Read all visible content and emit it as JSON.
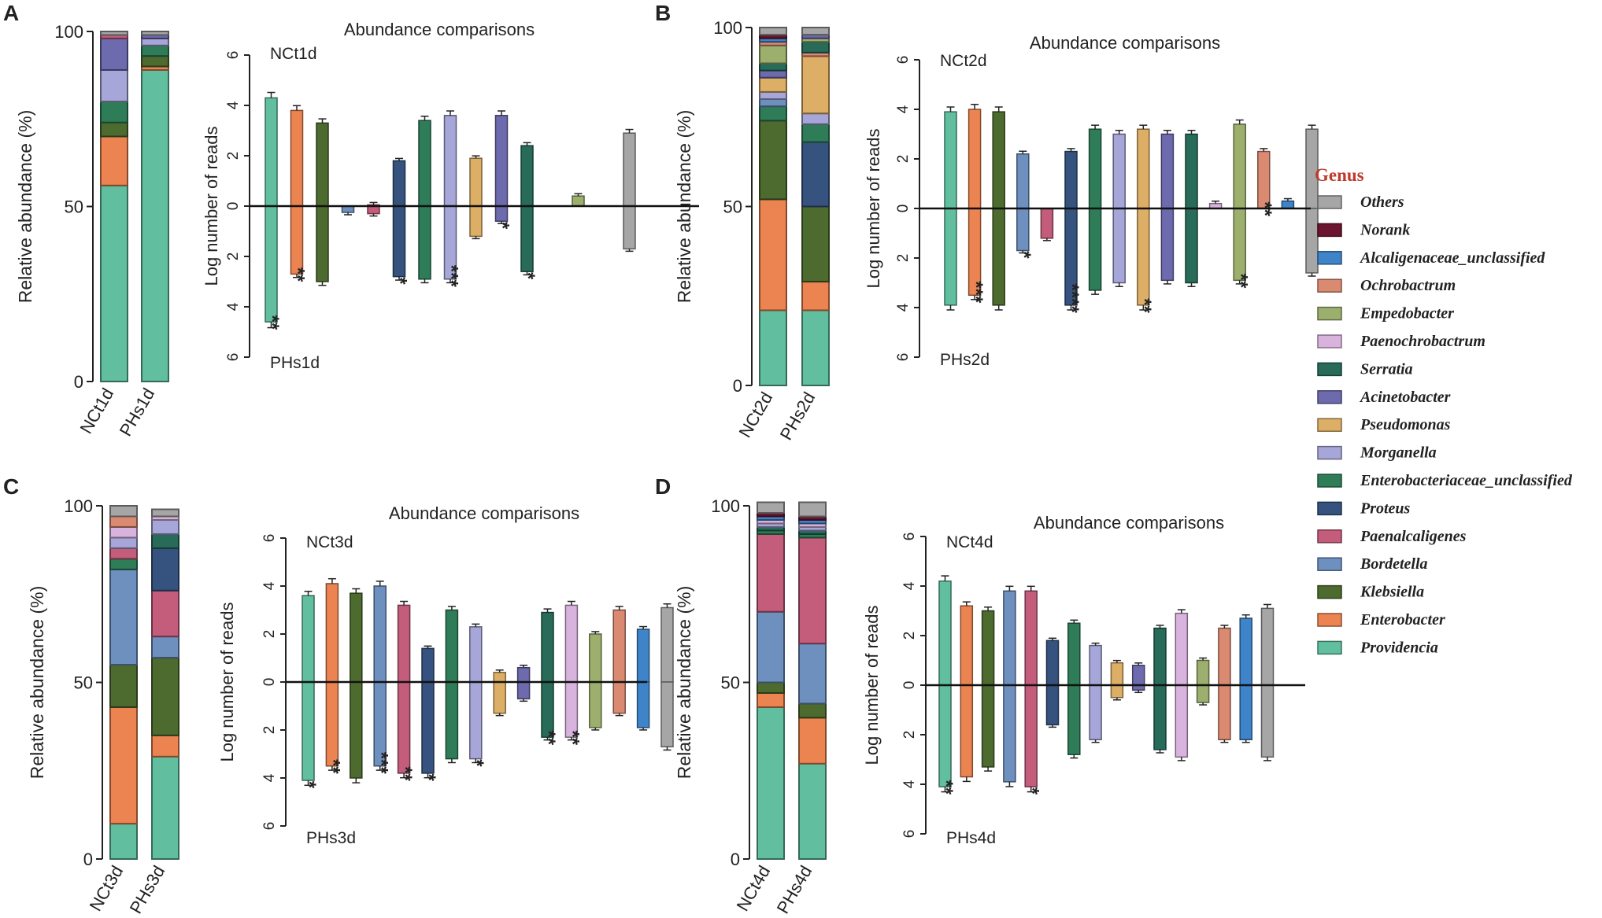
{
  "colors": {
    "Others": "#a6a6a6",
    "Norank": "#6b1530",
    "Alcaligenaceae_unclassified": "#3f84c8",
    "Ochrobactrum": "#db8a72",
    "Empedobacter": "#9caf6d",
    "Paenochrobactrum": "#d8b3dd",
    "Serratia": "#276b58",
    "Acinetobacter": "#6e6aae",
    "Pseudomonas": "#dcae66",
    "Morganella": "#a6a6d8",
    "Enterobacteriaceae_unclassified": "#2f7d58",
    "Proteus": "#36537f",
    "Paenalcaligenes": "#c45c7c",
    "Bordetella": "#6d90bf",
    "Klebsiella": "#4d6a2f",
    "Enterobacter": "#ec8452",
    "Providencia": "#61bfa0"
  },
  "legend": {
    "title": "Genus",
    "items": [
      "Others",
      "Norank",
      "Alcaligenaceae_unclassified",
      "Ochrobactrum",
      "Empedobacter",
      "Paenochrobactrum",
      "Serratia",
      "Acinetobacter",
      "Pseudomonas",
      "Morganella",
      "Enterobacteriaceae_unclassified",
      "Proteus",
      "Paenalcaligenes",
      "Bordetella",
      "Klebsiella",
      "Enterobacter",
      "Providencia"
    ]
  },
  "chart_data": [
    {
      "panel": "A",
      "type": "bar",
      "stacked": {
        "ylabel": "Relative abundance (%)",
        "yticks": [
          "0",
          "50",
          "100"
        ],
        "ylim": [
          0,
          100
        ],
        "categories": [
          "NCt1d",
          "PHs1d"
        ],
        "stacks": [
          [
            [
              "Providencia",
              56
            ],
            [
              "Enterobacter",
              14
            ],
            [
              "Klebsiella",
              4
            ],
            [
              "Enterobacteriaceae_unclassified",
              6
            ],
            [
              "Morganella",
              9
            ],
            [
              "Acinetobacter",
              9
            ],
            [
              "Paenalcaligenes",
              1
            ],
            [
              "Others",
              1
            ]
          ],
          [
            [
              "Providencia",
              89
            ],
            [
              "Enterobacter",
              1
            ],
            [
              "Klebsiella",
              3
            ],
            [
              "Enterobacteriaceae_unclassified",
              3
            ],
            [
              "Morganella",
              2
            ],
            [
              "Acinetobacter",
              1
            ],
            [
              "Others",
              1
            ]
          ]
        ]
      },
      "comparison": {
        "title": "Abundance comparisons",
        "ylabel": "Log number of reads",
        "top_label": "NCt1d",
        "bottom_label": "PHs1d",
        "yticks": [
          "6",
          "4",
          "2",
          "0",
          "2",
          "4",
          "6"
        ],
        "ylim": [
          -6,
          6
        ],
        "bars": [
          {
            "genus": "Providencia",
            "up": 4.3,
            "down": 4.6,
            "sig": "**"
          },
          {
            "genus": "Enterobacter",
            "up": 3.8,
            "down": 2.7,
            "sig": "**"
          },
          {
            "genus": "Klebsiella",
            "up": 3.3,
            "down": 3.0,
            "sig": ""
          },
          {
            "genus": "Bordetella",
            "up": 0,
            "down": 0.25,
            "sig": ""
          },
          {
            "genus": "Paenalcaligenes",
            "up": 0.05,
            "down": 0.3,
            "sig": ""
          },
          {
            "genus": "Proteus",
            "up": 1.8,
            "down": 2.8,
            "sig": "*"
          },
          {
            "genus": "Enterobacteriaceae_unclassified",
            "up": 3.4,
            "down": 2.9,
            "sig": ""
          },
          {
            "genus": "Morganella",
            "up": 3.6,
            "down": 2.9,
            "sig": "***"
          },
          {
            "genus": "Pseudomonas",
            "up": 1.9,
            "down": 1.2,
            "sig": ""
          },
          {
            "genus": "Acinetobacter",
            "up": 3.6,
            "down": 0.6,
            "sig": "*"
          },
          {
            "genus": "Serratia",
            "up": 2.4,
            "down": 2.6,
            "sig": "*"
          },
          {
            "genus": "Paenochrobactrum",
            "up": 0,
            "down": 0,
            "sig": ""
          },
          {
            "genus": "Empedobacter",
            "up": 0.4,
            "down": 0,
            "sig": ""
          },
          {
            "genus": "Ochrobactrum",
            "up": 0,
            "down": 0,
            "sig": ""
          },
          {
            "genus": "Others",
            "up": 2.9,
            "down": 1.7,
            "sig": ""
          }
        ]
      }
    },
    {
      "panel": "B",
      "type": "bar",
      "stacked": {
        "ylabel": "Relative abundance (%)",
        "yticks": [
          "0",
          "50",
          "100"
        ],
        "ylim": [
          0,
          100
        ],
        "categories": [
          "NCt2d",
          "PHs2d"
        ],
        "stacks": [
          [
            [
              "Providencia",
              21
            ],
            [
              "Enterobacter",
              31
            ],
            [
              "Klebsiella",
              22
            ],
            [
              "Enterobacteriaceae_unclassified",
              4
            ],
            [
              "Bordetella",
              2
            ],
            [
              "Morganella",
              2
            ],
            [
              "Pseudomonas",
              4
            ],
            [
              "Acinetobacter",
              2
            ],
            [
              "Serratia",
              2
            ],
            [
              "Empedobacter",
              5
            ],
            [
              "Ochrobactrum",
              1
            ],
            [
              "Alcaligenaceae_unclassified",
              1
            ],
            [
              "Norank",
              1
            ],
            [
              "Others",
              2
            ]
          ],
          [
            [
              "Providencia",
              21
            ],
            [
              "Enterobacter",
              8
            ],
            [
              "Klebsiella",
              21
            ],
            [
              "Proteus",
              18
            ],
            [
              "Enterobacteriaceae_unclassified",
              5
            ],
            [
              "Morganella",
              3
            ],
            [
              "Pseudomonas",
              16
            ],
            [
              "Ochrobactrum",
              1
            ],
            [
              "Serratia",
              3
            ],
            [
              "Empedobacter",
              1
            ],
            [
              "Acinetobacter",
              1
            ],
            [
              "Others",
              2
            ]
          ]
        ]
      },
      "comparison": {
        "title": "Abundance comparisons",
        "ylabel": "Log number of reads",
        "top_label": "NCt2d",
        "bottom_label": "PHs2d",
        "yticks": [
          "6",
          "4",
          "2",
          "0",
          "2",
          "4",
          "6"
        ],
        "ylim": [
          -6,
          6
        ],
        "bars": [
          {
            "genus": "Providencia",
            "up": 3.9,
            "down": 3.9,
            "sig": ""
          },
          {
            "genus": "Enterobacter",
            "up": 4.0,
            "down": 3.5,
            "sig": "***"
          },
          {
            "genus": "Klebsiella",
            "up": 3.9,
            "down": 3.9,
            "sig": ""
          },
          {
            "genus": "Bordetella",
            "up": 2.2,
            "down": 1.7,
            "sig": "*"
          },
          {
            "genus": "Paenalcaligenes",
            "up": 0,
            "down": 1.2,
            "sig": ""
          },
          {
            "genus": "Proteus",
            "up": 2.3,
            "down": 3.9,
            "sig": "****"
          },
          {
            "genus": "Enterobacteriaceae_unclassified",
            "up": 3.2,
            "down": 3.3,
            "sig": ""
          },
          {
            "genus": "Morganella",
            "up": 3.0,
            "down": 3.0,
            "sig": ""
          },
          {
            "genus": "Pseudomonas",
            "up": 3.2,
            "down": 3.9,
            "sig": "**"
          },
          {
            "genus": "Acinetobacter",
            "up": 3.0,
            "down": 2.9,
            "sig": ""
          },
          {
            "genus": "Serratia",
            "up": 3.0,
            "down": 3.0,
            "sig": ""
          },
          {
            "genus": "Paenochrobactrum",
            "up": 0.2,
            "down": 0,
            "sig": ""
          },
          {
            "genus": "Empedobacter",
            "up": 3.4,
            "down": 2.9,
            "sig": "**"
          },
          {
            "genus": "Ochrobactrum",
            "up": 2.3,
            "down": 0,
            "sig": "**"
          },
          {
            "genus": "Alcaligenaceae_unclassified",
            "up": 0.3,
            "down": 0,
            "sig": ""
          },
          {
            "genus": "Others",
            "up": 3.2,
            "down": 2.6,
            "sig": ""
          }
        ]
      }
    },
    {
      "panel": "C",
      "type": "bar",
      "stacked": {
        "ylabel": "Relative abundance (%)",
        "yticks": [
          "0",
          "50",
          "100"
        ],
        "ylim": [
          0,
          100
        ],
        "categories": [
          "NCt3d",
          "PHs3d"
        ],
        "stacks": [
          [
            [
              "Providencia",
              10
            ],
            [
              "Enterobacter",
              33
            ],
            [
              "Klebsiella",
              12
            ],
            [
              "Bordetella",
              27
            ],
            [
              "Enterobacteriaceae_unclassified",
              3
            ],
            [
              "Paenalcaligenes",
              3
            ],
            [
              "Morganella",
              3
            ],
            [
              "Paenochrobactrum",
              3
            ],
            [
              "Ochrobactrum",
              3
            ],
            [
              "Others",
              3
            ]
          ],
          [
            [
              "Providencia",
              29
            ],
            [
              "Enterobacter",
              6
            ],
            [
              "Klebsiella",
              22
            ],
            [
              "Bordetella",
              6
            ],
            [
              "Paenalcaligenes",
              13
            ],
            [
              "Proteus",
              12
            ],
            [
              "Serratia",
              4
            ],
            [
              "Morganella",
              4
            ],
            [
              "Paenochrobactrum",
              1
            ],
            [
              "Others",
              2
            ]
          ]
        ]
      },
      "comparison": {
        "title": "Abundance comparisons",
        "ylabel": "Log number of reads",
        "top_label": "NCt3d",
        "bottom_label": "PHs3d",
        "yticks": [
          "6",
          "4",
          "2",
          "0",
          "2",
          "4",
          "6"
        ],
        "ylim": [
          -6,
          6
        ],
        "bars": [
          {
            "genus": "Providencia",
            "up": 3.6,
            "down": 4.1,
            "sig": "*"
          },
          {
            "genus": "Enterobacter",
            "up": 4.1,
            "down": 3.5,
            "sig": "**"
          },
          {
            "genus": "Klebsiella",
            "up": 3.7,
            "down": 4.0,
            "sig": ""
          },
          {
            "genus": "Bordetella",
            "up": 4.0,
            "down": 3.5,
            "sig": "***"
          },
          {
            "genus": "Paenalcaligenes",
            "up": 3.2,
            "down": 3.8,
            "sig": "**"
          },
          {
            "genus": "Proteus",
            "up": 1.4,
            "down": 3.8,
            "sig": "*"
          },
          {
            "genus": "Enterobacteriaceae_unclassified",
            "up": 3.0,
            "down": 3.2,
            "sig": ""
          },
          {
            "genus": "Morganella",
            "up": 2.3,
            "down": 3.2,
            "sig": "*"
          },
          {
            "genus": "Pseudomonas",
            "up": 0.4,
            "down": 1.3,
            "sig": ""
          },
          {
            "genus": "Acinetobacter",
            "up": 0.6,
            "down": 0.7,
            "sig": ""
          },
          {
            "genus": "Serratia",
            "up": 2.9,
            "down": 2.3,
            "sig": "**"
          },
          {
            "genus": "Paenochrobactrum",
            "up": 3.2,
            "down": 2.3,
            "sig": "**"
          },
          {
            "genus": "Empedobacter",
            "up": 2.0,
            "down": 1.9,
            "sig": ""
          },
          {
            "genus": "Ochrobactrum",
            "up": 3.0,
            "down": 1.3,
            "sig": ""
          },
          {
            "genus": "Alcaligenaceae_unclassified",
            "up": 2.2,
            "down": 1.9,
            "sig": ""
          },
          {
            "genus": "Others",
            "up": 3.1,
            "down": 2.7,
            "sig": ""
          }
        ]
      }
    },
    {
      "panel": "D",
      "type": "bar",
      "stacked": {
        "ylabel": "Relative abundance (%)",
        "yticks": [
          "0",
          "50",
          "100"
        ],
        "ylim": [
          0,
          100
        ],
        "categories": [
          "NCt4d",
          "PHs4d"
        ],
        "stacks": [
          [
            [
              "Providencia",
              43
            ],
            [
              "Enterobacter",
              4
            ],
            [
              "Klebsiella",
              3
            ],
            [
              "Bordetella",
              20
            ],
            [
              "Paenalcaligenes",
              22
            ],
            [
              "Enterobacteriaceae_unclassified",
              1
            ],
            [
              "Serratia",
              1
            ],
            [
              "Morganella",
              1
            ],
            [
              "Paenochrobactrum",
              1
            ],
            [
              "Alcaligenaceae_unclassified",
              1
            ],
            [
              "Norank",
              1
            ],
            [
              "Others",
              3
            ]
          ],
          [
            [
              "Providencia",
              27
            ],
            [
              "Enterobacter",
              13
            ],
            [
              "Klebsiella",
              4
            ],
            [
              "Bordetella",
              17
            ],
            [
              "Paenalcaligenes",
              30
            ],
            [
              "Enterobacteriaceae_unclassified",
              1
            ],
            [
              "Serratia",
              1
            ],
            [
              "Morganella",
              1
            ],
            [
              "Paenochrobactrum",
              1
            ],
            [
              "Alcaligenaceae_unclassified",
              1
            ],
            [
              "Norank",
              1
            ],
            [
              "Others",
              4
            ]
          ]
        ]
      },
      "comparison": {
        "title": "Abundance comparisons",
        "ylabel": "Log number of reads",
        "top_label": "NCt4d",
        "bottom_label": "PHs4d",
        "yticks": [
          "6",
          "4",
          "2",
          "0",
          "2",
          "4",
          "6"
        ],
        "ylim": [
          -6,
          6
        ],
        "bars": [
          {
            "genus": "Providencia",
            "up": 4.2,
            "down": 4.1,
            "sig": "**"
          },
          {
            "genus": "Enterobacter",
            "up": 3.2,
            "down": 3.7,
            "sig": ""
          },
          {
            "genus": "Klebsiella",
            "up": 3.0,
            "down": 3.3,
            "sig": ""
          },
          {
            "genus": "Bordetella",
            "up": 3.8,
            "down": 3.9,
            "sig": ""
          },
          {
            "genus": "Paenalcaligenes",
            "up": 3.8,
            "down": 4.1,
            "sig": "*"
          },
          {
            "genus": "Proteus",
            "up": 1.8,
            "down": 1.6,
            "sig": ""
          },
          {
            "genus": "Enterobacteriaceae_unclassified",
            "up": 2.5,
            "down": 2.8,
            "sig": ""
          },
          {
            "genus": "Morganella",
            "up": 1.6,
            "down": 2.2,
            "sig": ""
          },
          {
            "genus": "Pseudomonas",
            "up": 0.9,
            "down": 0.5,
            "sig": ""
          },
          {
            "genus": "Acinetobacter",
            "up": 0.8,
            "down": 0.2,
            "sig": ""
          },
          {
            "genus": "Serratia",
            "up": 2.3,
            "down": 2.6,
            "sig": ""
          },
          {
            "genus": "Paenochrobactrum",
            "up": 2.9,
            "down": 2.9,
            "sig": ""
          },
          {
            "genus": "Empedobacter",
            "up": 1.0,
            "down": 0.7,
            "sig": ""
          },
          {
            "genus": "Ochrobactrum",
            "up": 2.3,
            "down": 2.2,
            "sig": ""
          },
          {
            "genus": "Alcaligenaceae_unclassified",
            "up": 2.7,
            "down": 2.2,
            "sig": ""
          },
          {
            "genus": "Others",
            "up": 3.1,
            "down": 2.9,
            "sig": ""
          }
        ]
      }
    }
  ]
}
